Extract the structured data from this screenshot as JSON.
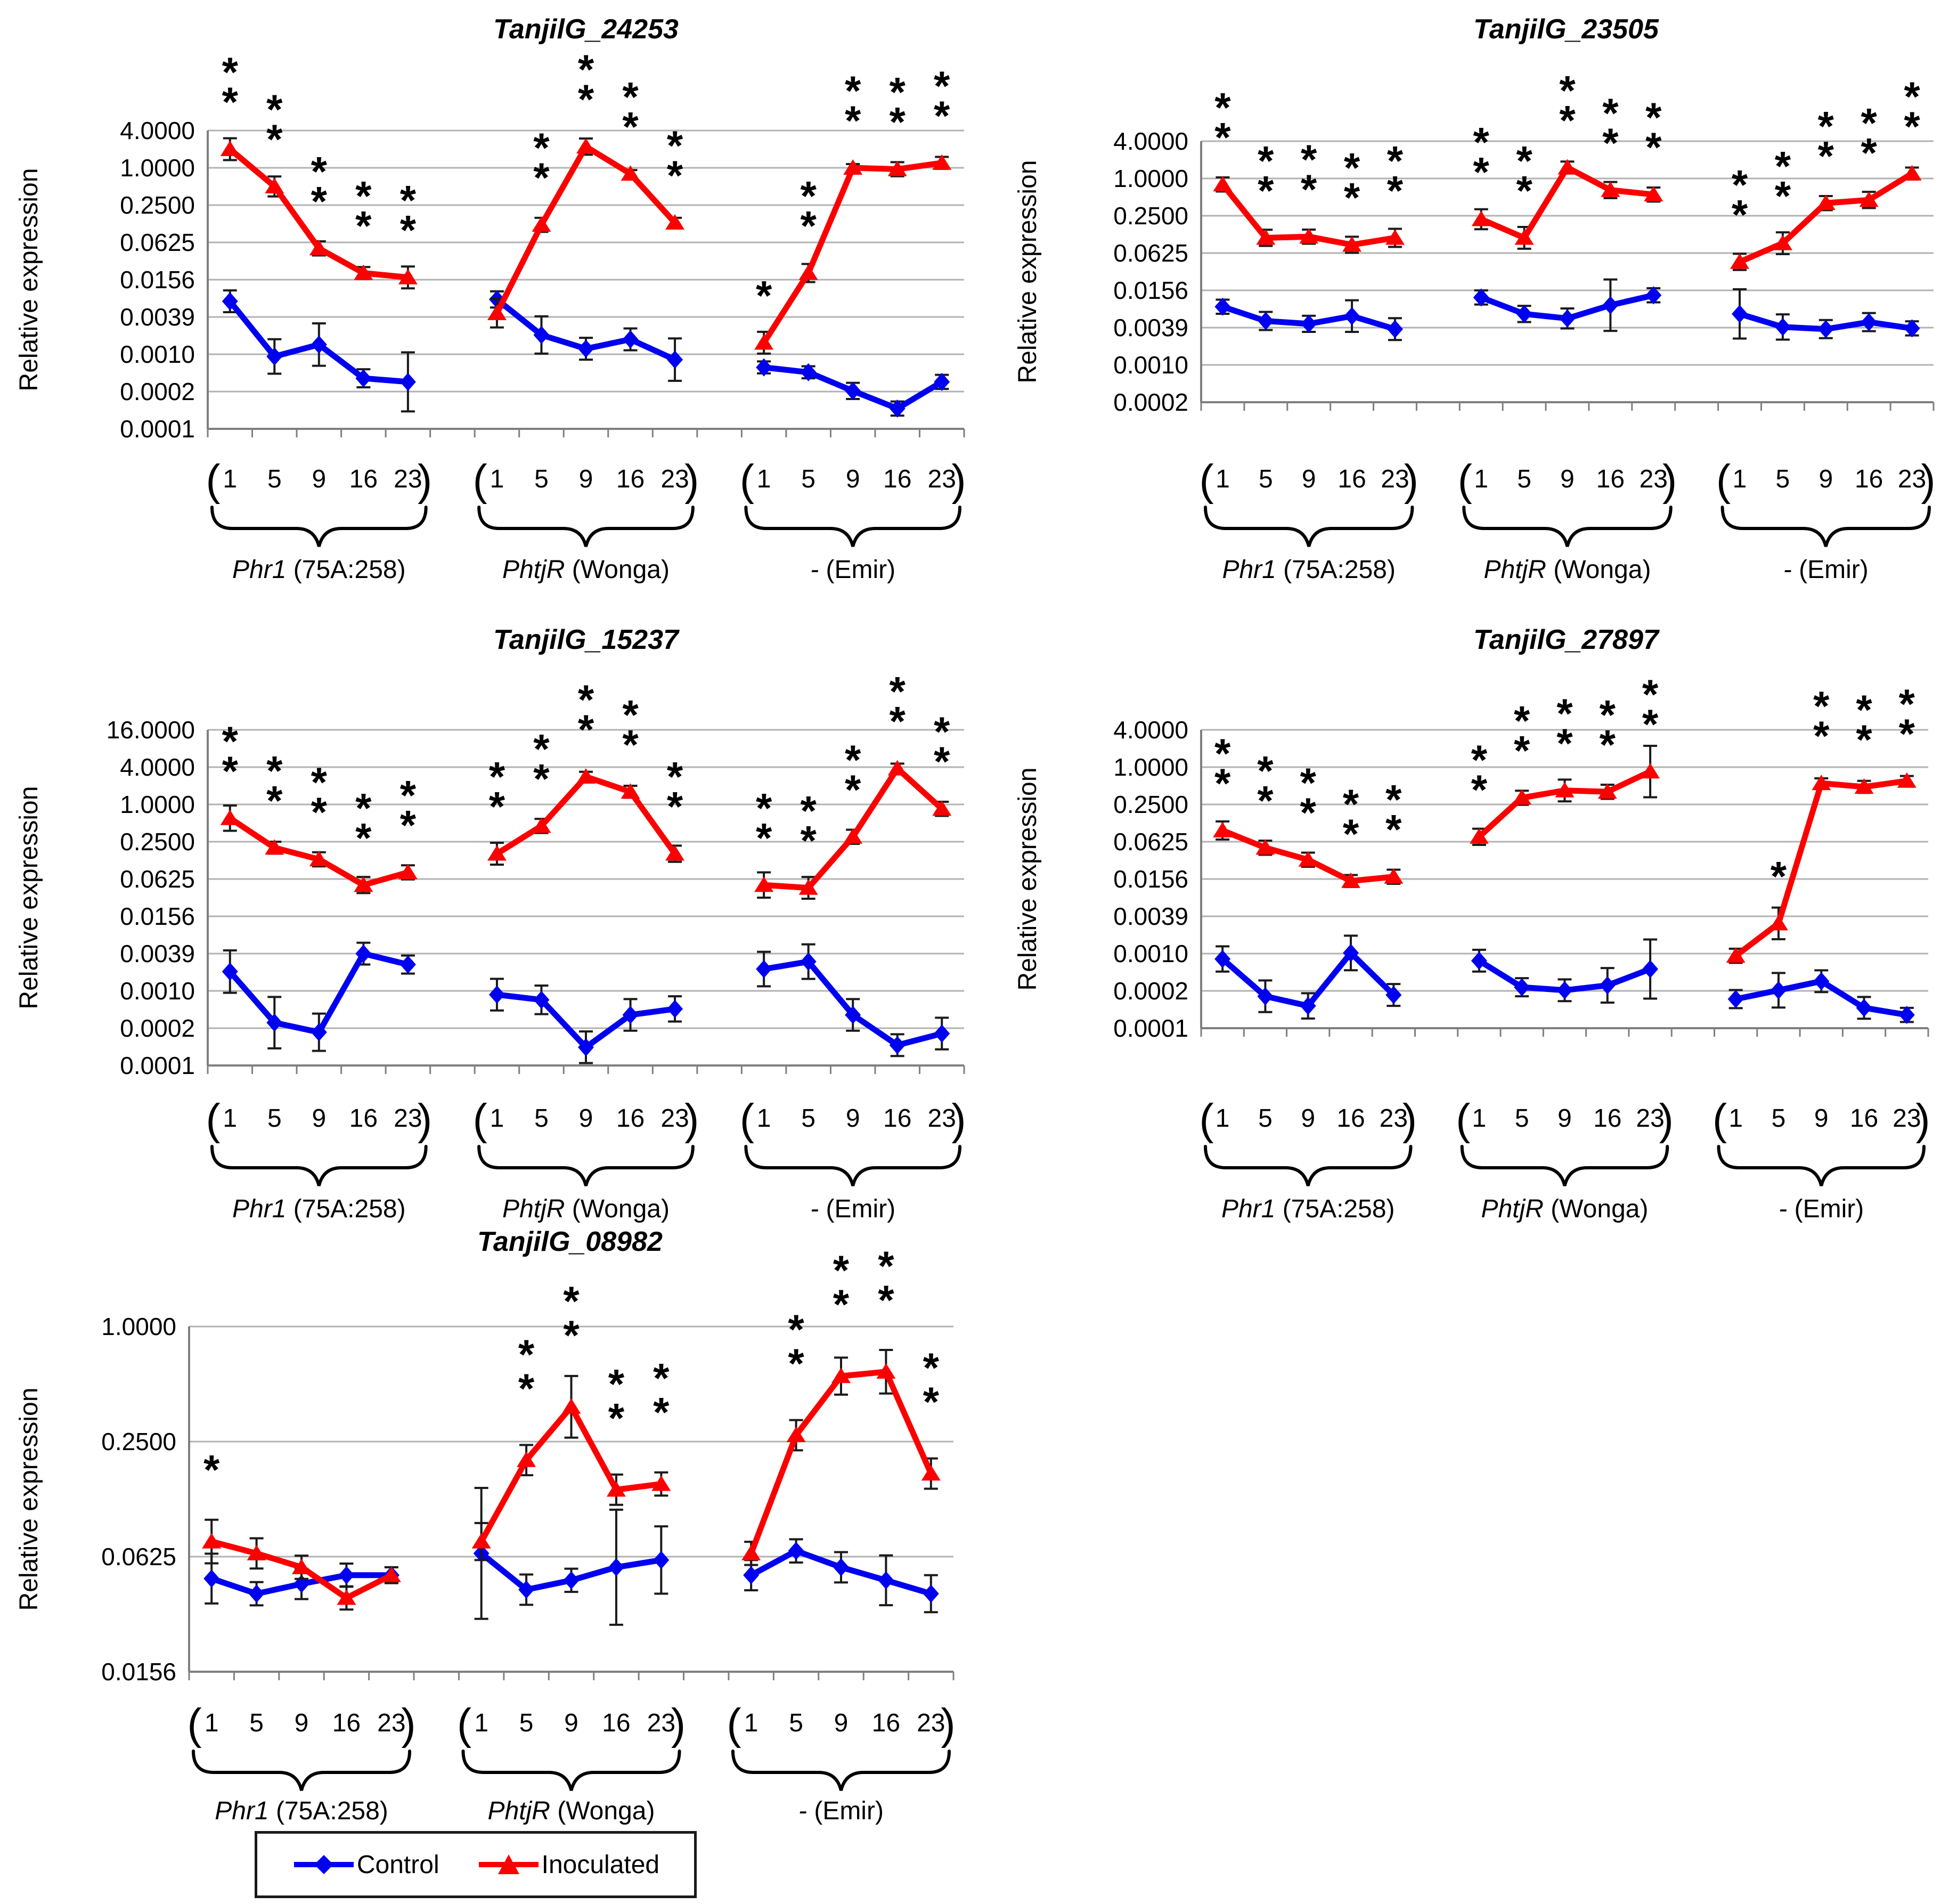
{
  "figure": {
    "background": "#ffffff",
    "ylabel": "Relative expression",
    "groups": [
      {
        "gene": "Phr1",
        "suffix": " (75A:258)"
      },
      {
        "gene": "PhtjR",
        "suffix": " (Wonga)"
      },
      {
        "gene": "-",
        "suffix": " (Emir)"
      }
    ],
    "timepoints": [
      "1",
      "5",
      "9",
      "16",
      "23"
    ],
    "colors": {
      "control": "#0000f0",
      "inoculated": "#fc0000",
      "grid": "#b2b2b2",
      "axis": "#7f7f7f",
      "errorbar": "#1a1a1a",
      "text": "#000000"
    }
  },
  "legend": {
    "items": [
      {
        "label": "Control",
        "color": "#0000f0",
        "marker": "diamond"
      },
      {
        "label": "Inoculated",
        "color": "#fc0000",
        "marker": "triangle"
      }
    ]
  },
  "chart_data": [
    {
      "type": "line",
      "title": "TanjilG_24253",
      "ylabel": "Relative expression",
      "yscale": "log4",
      "ymax": 4,
      "yticks": [
        "4.0000",
        "1.0000",
        "0.2500",
        "0.0625",
        "0.0156",
        "0.0039",
        "0.0010",
        "0.0002",
        "0.0001"
      ],
      "x_groups": [
        "Phr1 (75A:258)",
        "PhtjR (Wonga)",
        "- (Emir)"
      ],
      "timepoints": [
        "1",
        "5",
        "9",
        "16",
        "23"
      ],
      "series": [
        {
          "name": "Control",
          "color": "#0000f0",
          "marker": "diamond",
          "values": [
            [
              0.007,
              0.0009,
              0.0014,
              0.0004,
              0.00035
            ],
            [
              0.0075,
              0.002,
              0.0012,
              0.0017,
              0.0008
            ],
            [
              0.0006,
              0.0005,
              0.00025,
              0.00013,
              0.00035
            ]
          ],
          "err_factor": [
            [
              1.5,
              1.9,
              2.2,
              1.4,
              3.0
            ],
            [
              1.35,
              2.0,
              1.5,
              1.5,
              2.2
            ],
            [
              1.25,
              1.25,
              1.35,
              1.3,
              1.3
            ]
          ]
        },
        {
          "name": "Inoculated",
          "color": "#fc0000",
          "marker": "triangle",
          "values": [
            [
              2.0,
              0.5,
              0.05,
              0.02,
              0.017
            ],
            [
              0.0045,
              0.12,
              2.2,
              0.8,
              0.13
            ],
            [
              0.0015,
              0.02,
              1.0,
              0.95,
              1.2
            ]
          ],
          "err_factor": [
            [
              1.5,
              1.45,
              1.3,
              1.25,
              1.5
            ],
            [
              1.7,
              1.3,
              1.35,
              1.15,
              1.2
            ],
            [
              1.5,
              1.4,
              1.15,
              1.3,
              1.25
            ]
          ],
          "significance": [
            [
              "**",
              "**",
              "**",
              "**",
              "**"
            ],
            [
              "",
              "**",
              "**",
              "**",
              "**"
            ],
            [
              "*",
              "**",
              "**",
              "**",
              "**"
            ]
          ]
        }
      ]
    },
    {
      "type": "line",
      "title": "TanjilG_23505",
      "ylabel": "Relative expression",
      "yscale": "log4",
      "ymax": 4,
      "yticks": [
        "4.0000",
        "1.0000",
        "0.2500",
        "0.0625",
        "0.0156",
        "0.0039",
        "0.0010",
        "0.0002"
      ],
      "x_groups": [
        "Phr1 (75A:258)",
        "PhtjR (Wonga)",
        "- (Emir)"
      ],
      "timepoints": [
        "1",
        "5",
        "9",
        "16",
        "23"
      ],
      "series": [
        {
          "name": "Control",
          "color": "#0000f0",
          "marker": "diamond",
          "values": [
            [
              0.0085,
              0.005,
              0.0045,
              0.006,
              0.0037
            ],
            [
              0.012,
              0.0065,
              0.0055,
              0.009,
              0.013
            ],
            [
              0.0065,
              0.004,
              0.0037,
              0.0048,
              0.0038
            ]
          ],
          "err_factor": [
            [
              1.3,
              1.4,
              1.35,
              1.8,
              1.5
            ],
            [
              1.3,
              1.35,
              1.45,
              2.6,
              1.3
            ],
            [
              2.5,
              1.6,
              1.4,
              1.4,
              1.3
            ]
          ]
        },
        {
          "name": "Inoculated",
          "color": "#fc0000",
          "marker": "triangle",
          "values": [
            [
              0.8,
              0.11,
              0.115,
              0.085,
              0.11
            ],
            [
              0.22,
              0.11,
              1.5,
              0.65,
              0.55
            ],
            [
              0.045,
              0.09,
              0.4,
              0.45,
              1.2
            ]
          ],
          "err_factor": [
            [
              1.3,
              1.35,
              1.3,
              1.35,
              1.4
            ],
            [
              1.45,
              1.5,
              1.25,
              1.35,
              1.3
            ],
            [
              1.35,
              1.5,
              1.3,
              1.35,
              1.25
            ]
          ],
          "significance": [
            [
              "**",
              "**",
              "**",
              "**",
              "**"
            ],
            [
              "**",
              "**",
              "**",
              "**",
              "**"
            ],
            [
              "**",
              "**",
              "**",
              "**",
              "**"
            ]
          ]
        }
      ]
    },
    {
      "type": "line",
      "title": "TanjilG_15237",
      "ylabel": "Relative expression",
      "yscale": "log4",
      "ymax": 16,
      "yticks": [
        "16.0000",
        "4.0000",
        "1.0000",
        "0.2500",
        "0.0625",
        "0.0156",
        "0.0039",
        "0.0010",
        "0.0002",
        "0.0001"
      ],
      "x_groups": [
        "Phr1 (75A:258)",
        "PhtjR (Wonga)",
        "- (Emir)"
      ],
      "timepoints": [
        "1",
        "5",
        "9",
        "16",
        "23"
      ],
      "series": [
        {
          "name": "Control",
          "color": "#0000f0",
          "marker": "diamond",
          "values": [
            [
              0.002,
              0.0003,
              0.00021,
              0.0039,
              0.0026
            ],
            [
              0.00085,
              0.0007,
              0.00012,
              0.0004,
              0.0005
            ],
            [
              0.0022,
              0.0029,
              0.0004,
              0.00013,
              0.0002
            ]
          ],
          "err_factor": [
            [
              2.2,
              2.6,
              2.0,
              1.5,
              1.4
            ],
            [
              1.8,
              1.7,
              1.8,
              1.8,
              1.6
            ],
            [
              1.9,
              1.9,
              1.8,
              1.5,
              1.8
            ]
          ]
        },
        {
          "name": "Inoculated",
          "color": "#fc0000",
          "marker": "triangle",
          "values": [
            [
              0.6,
              0.2,
              0.13,
              0.05,
              0.08
            ],
            [
              0.16,
              0.45,
              2.8,
              1.6,
              0.16
            ],
            [
              0.05,
              0.045,
              0.3,
              3.8,
              0.85
            ]
          ],
          "err_factor": [
            [
              1.6,
              1.25,
              1.3,
              1.35,
              1.3
            ],
            [
              1.5,
              1.3,
              1.2,
              1.25,
              1.35
            ],
            [
              1.6,
              1.5,
              1.3,
              1.2,
              1.3
            ]
          ],
          "significance": [
            [
              "**",
              "**",
              "**",
              "**",
              "**"
            ],
            [
              "**",
              "**",
              "**",
              "**",
              "**"
            ],
            [
              "**",
              "**",
              "**",
              "**",
              "**"
            ]
          ]
        }
      ]
    },
    {
      "type": "line",
      "title": "TanjilG_27897",
      "ylabel": "Relative expression",
      "yscale": "log4",
      "ymax": 4,
      "yticks": [
        "4.0000",
        "1.0000",
        "0.2500",
        "0.0625",
        "0.0156",
        "0.0039",
        "0.0010",
        "0.0002",
        "0.0001"
      ],
      "x_groups": [
        "Phr1 (75A:258)",
        "PhtjR (Wonga)",
        "- (Emir)"
      ],
      "timepoints": [
        "1",
        "5",
        "9",
        "16",
        "23"
      ],
      "series": [
        {
          "name": "Control",
          "color": "#0000f0",
          "marker": "diamond",
          "values": [
            [
              0.0008,
              0.0002,
              0.00014,
              0.001,
              0.00021
            ],
            [
              0.00075,
              0.00028,
              0.00025,
              0.0003,
              0.00055
            ],
            [
              0.00018,
              0.00025,
              0.00035,
              0.00013,
              0.0001
            ]
          ],
          "err_factor": [
            [
              1.6,
              1.8,
              1.6,
              1.9,
              1.5
            ],
            [
              1.5,
              1.4,
              1.5,
              1.9,
              3.0
            ],
            [
              1.4,
              1.9,
              1.5,
              1.5,
              1.3
            ]
          ]
        },
        {
          "name": "Inoculated",
          "color": "#fc0000",
          "marker": "triangle",
          "values": [
            [
              0.095,
              0.05,
              0.032,
              0.0145,
              0.017
            ],
            [
              0.075,
              0.32,
              0.42,
              0.4,
              0.85
            ],
            [
              0.0009,
              0.003,
              0.55,
              0.48,
              0.6
            ]
          ],
          "err_factor": [
            [
              1.4,
              1.3,
              1.3,
              1.25,
              1.3
            ],
            [
              1.35,
              1.3,
              1.5,
              1.3,
              2.6
            ],
            [
              1.3,
              1.8,
              1.2,
              1.25,
              1.2
            ]
          ],
          "significance": [
            [
              "**",
              "**",
              "**",
              "**",
              "**"
            ],
            [
              "**",
              "**",
              "**",
              "**",
              "**"
            ],
            [
              "",
              "*",
              "**",
              "**",
              "**"
            ]
          ]
        }
      ]
    },
    {
      "type": "line",
      "title": "TanjilG_08982",
      "ylabel": "Relative expression",
      "yscale": "log4",
      "ymax": 1,
      "yticks": [
        "1.0000",
        "0.2500",
        "0.0625",
        "0.0156"
      ],
      "x_groups": [
        "Phr1 (75A:258)",
        "PhtjR (Wonga)",
        "- (Emir)"
      ],
      "timepoints": [
        "1",
        "5",
        "9",
        "16",
        "23"
      ],
      "series": [
        {
          "name": "Control",
          "color": "#0000f0",
          "marker": "diamond",
          "values": [
            [
              0.048,
              0.04,
              0.045,
              0.05,
              0.05
            ],
            [
              0.065,
              0.042,
              0.047,
              0.055,
              0.06
            ],
            [
              0.05,
              0.067,
              0.055,
              0.047,
              0.04
            ]
          ],
          "err_factor": [
            [
              1.35,
              1.15,
              1.2,
              1.15,
              1.1
            ],
            [
              2.2,
              1.2,
              1.15,
              2.0,
              1.5
            ],
            [
              1.2,
              1.15,
              1.2,
              1.35,
              1.25
            ]
          ]
        },
        {
          "name": "Inoculated",
          "color": "#fc0000",
          "marker": "triangle",
          "values": [
            [
              0.075,
              0.065,
              0.055,
              0.038,
              0.05
            ],
            [
              0.075,
              0.2,
              0.38,
              0.14,
              0.15
            ],
            [
              0.065,
              0.27,
              0.55,
              0.58,
              0.17
            ]
          ],
          "err_factor": [
            [
              1.3,
              1.2,
              1.15,
              1.15,
              1.1
            ],
            [
              1.25,
              1.2,
              1.45,
              1.2,
              1.15
            ],
            [
              1.15,
              1.2,
              1.25,
              1.3,
              1.2
            ]
          ],
          "significance": [
            [
              "*",
              "",
              "",
              "",
              ""
            ],
            [
              "",
              "**",
              "**",
              "**",
              "**"
            ],
            [
              "",
              "**",
              "**",
              "**",
              "**"
            ]
          ]
        }
      ]
    }
  ]
}
